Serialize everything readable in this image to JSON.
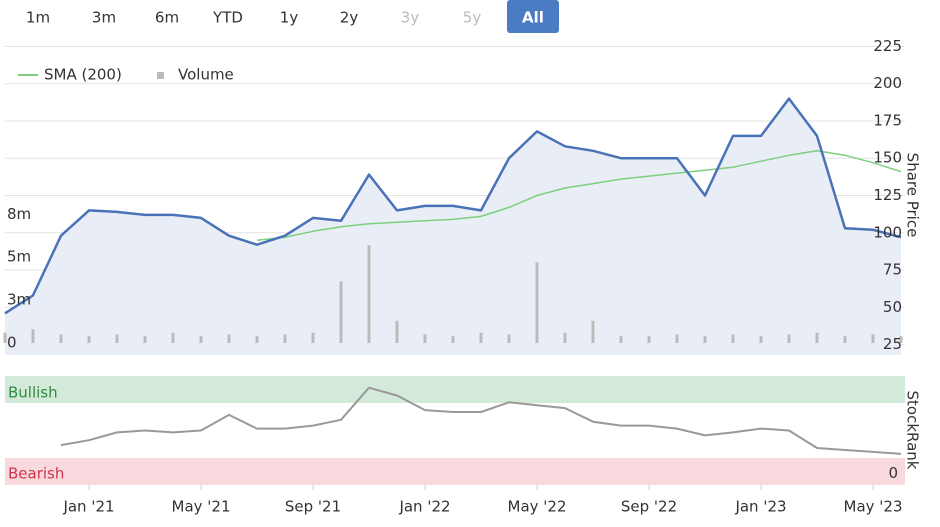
{
  "range_buttons": {
    "labels": [
      "1m",
      "3m",
      "6m",
      "YTD",
      "1y",
      "2y",
      "3y",
      "5y",
      "All"
    ],
    "disabled": [
      6,
      7
    ],
    "selected": 8
  },
  "chart_data": [
    {
      "type": "line",
      "ylabel": "Share Price",
      "x": [
        "2020-10",
        "2020-11",
        "2020-12",
        "2021-01",
        "2021-02",
        "2021-03",
        "2021-04",
        "2021-05",
        "2021-06",
        "2021-07",
        "2021-08",
        "2021-09",
        "2021-10",
        "2021-11",
        "2021-12",
        "2022-01",
        "2022-02",
        "2022-03",
        "2022-04",
        "2022-05",
        "2022-06",
        "2022-07",
        "2022-08",
        "2022-09",
        "2022-10",
        "2022-11",
        "2022-12",
        "2023-01",
        "2023-02",
        "2023-03",
        "2023-04",
        "2023-05",
        "2023-06"
      ],
      "xlim": [
        "2020-10",
        "2023-06"
      ],
      "series": [
        {
          "color": "#4a72b8",
          "values": [
            46,
            58,
            98,
            115,
            114,
            112,
            112,
            110,
            98,
            92,
            98,
            110,
            108,
            139,
            115,
            118,
            118,
            115,
            150,
            168,
            158,
            155,
            150,
            150,
            150,
            125,
            165,
            165,
            190,
            165,
            103,
            102,
            97
          ]
        },
        {
          "name": "SMA (200)",
          "color": "#7ccf7c",
          "values": [
            null,
            null,
            null,
            null,
            null,
            null,
            null,
            null,
            null,
            95,
            97,
            101,
            104,
            106,
            107,
            108,
            109,
            111,
            117,
            125,
            130,
            133,
            136,
            138,
            140,
            142,
            144,
            148,
            152,
            155,
            152,
            147,
            141
          ]
        },
        {
          "name": "Volume",
          "type": "bar",
          "axis": "y2",
          "color": "#bbbbbb",
          "values": [
            0.6,
            0.8,
            0.5,
            0.4,
            0.5,
            0.4,
            0.6,
            0.4,
            0.5,
            0.4,
            0.5,
            0.6,
            3.6,
            5.7,
            1.3,
            0.5,
            0.4,
            0.6,
            0.5,
            4.7,
            0.6,
            1.3,
            0.4,
            0.4,
            0.5,
            0.4,
            0.5,
            0.4,
            0.5,
            0.6,
            0.4,
            0.5,
            0.4
          ]
        }
      ],
      "ylim": [
        18,
        232
      ],
      "yticks": [
        25,
        50,
        75,
        100,
        125,
        150,
        175,
        200,
        225
      ],
      "grid": true,
      "y2lim": [
        -0.7,
        17.9
      ],
      "y2ticks": [
        0,
        {
          "value": 2.5,
          "label": "3m"
        },
        {
          "value": 5,
          "label": "5m"
        },
        {
          "value": 7.5,
          "label": "8m"
        }
      ],
      "legend": "top-left"
    },
    {
      "type": "line",
      "ylabel": "StockRank",
      "annotations": [
        "Bullish",
        "Bearish"
      ],
      "x": [
        "2020-10",
        "2020-11",
        "2020-12",
        "2021-01",
        "2021-02",
        "2021-03",
        "2021-04",
        "2021-05",
        "2021-06",
        "2021-07",
        "2021-08",
        "2021-09",
        "2021-10",
        "2021-11",
        "2021-12",
        "2022-01",
        "2022-02",
        "2022-03",
        "2022-04",
        "2022-05",
        "2022-06",
        "2022-07",
        "2022-08",
        "2022-09",
        "2022-10",
        "2022-11",
        "2022-12",
        "2023-01",
        "2023-02",
        "2023-03",
        "2023-04",
        "2023-05",
        "2023-06"
      ],
      "xlim": [
        "2020-10",
        "2023-06"
      ],
      "xticks": [
        {
          "value": "2021-01",
          "label": "Jan '21"
        },
        {
          "value": "2021-05",
          "label": "May '21"
        },
        {
          "value": "2021-09",
          "label": "Sep '21"
        },
        {
          "value": "2022-01",
          "label": "Jan '22"
        },
        {
          "value": "2022-05",
          "label": "May '22"
        },
        {
          "value": "2022-09",
          "label": "Sep '22"
        },
        {
          "value": "2023-01",
          "label": "Jan '23"
        },
        {
          "value": "2023-05",
          "label": "May '23"
        }
      ],
      "series": [
        {
          "color": "#999999",
          "values": [
            null,
            null,
            29,
            34,
            42,
            44,
            42,
            44,
            60,
            46,
            46,
            49,
            55,
            88,
            80,
            65,
            63,
            63,
            73,
            70,
            67,
            53,
            49,
            49,
            46,
            39,
            42,
            46,
            44,
            26,
            24,
            22,
            20
          ]
        }
      ],
      "ylim": [
        -12,
        100
      ],
      "yticks": [
        0
      ]
    }
  ]
}
